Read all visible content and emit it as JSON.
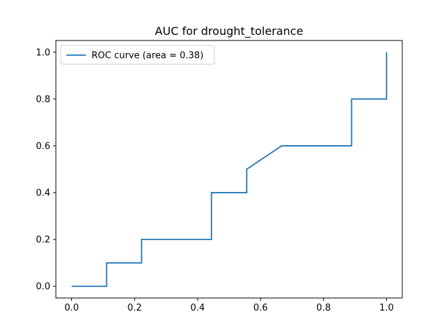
{
  "chart_data": {
    "type": "line",
    "title": "AUC for drought_tolerance",
    "xlabel": "",
    "ylabel": "",
    "xlim": [
      -0.05,
      1.05
    ],
    "ylim": [
      -0.05,
      1.05
    ],
    "xticks": [
      0.0,
      0.2,
      0.4,
      0.6,
      0.8,
      1.0
    ],
    "yticks": [
      0.0,
      0.2,
      0.4,
      0.6,
      0.8,
      1.0
    ],
    "xtick_labels": [
      "0.0",
      "0.2",
      "0.4",
      "0.6",
      "0.8",
      "1.0"
    ],
    "ytick_labels": [
      "0.0",
      "0.2",
      "0.4",
      "0.6",
      "0.8",
      "1.0"
    ],
    "grid": false,
    "legend": {
      "position": "upper-left"
    },
    "series": [
      {
        "name": "ROC curve (area = 0.38)",
        "color": "#1f77b4",
        "x": [
          0.0,
          0.111,
          0.111,
          0.222,
          0.222,
          0.444,
          0.444,
          0.556,
          0.556,
          0.667,
          0.889,
          0.889,
          1.0,
          1.0
        ],
        "y": [
          0.0,
          0.0,
          0.1,
          0.1,
          0.2,
          0.2,
          0.4,
          0.4,
          0.5,
          0.6,
          0.6,
          0.8,
          0.8,
          1.0
        ]
      }
    ]
  }
}
